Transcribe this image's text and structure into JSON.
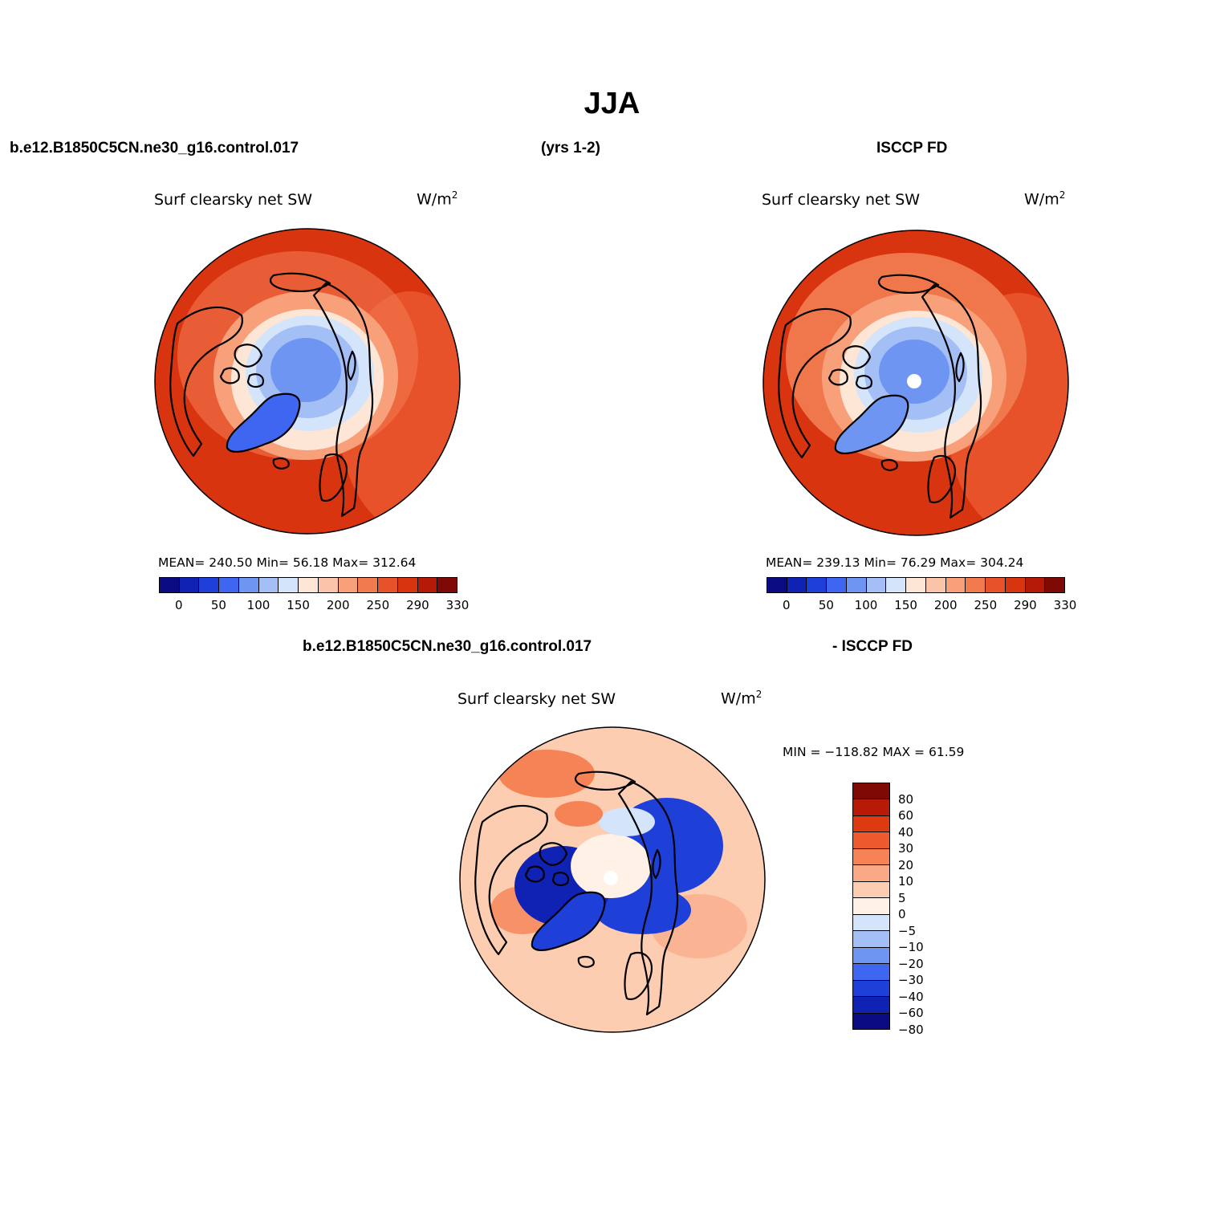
{
  "title": "JJA",
  "header": {
    "case": "b.e12.B1850C5CN.ne30_g16.control.017",
    "years": "(yrs 1-2)",
    "obs": "ISCCP FD"
  },
  "diff_header": {
    "case": "b.e12.B1850C5CN.ne30_g16.control.017",
    "obs": "- ISCCP FD"
  },
  "colors": {
    "abs_scale": [
      "#0a0a82",
      "#0f22b4",
      "#1f3fd9",
      "#3e66f0",
      "#6f95f3",
      "#a4bff6",
      "#d3e4fb",
      "#fde6d6",
      "#fbc3a8",
      "#f7a07a",
      "#f17a4f",
      "#e8522a",
      "#d93410",
      "#b51a08",
      "#7e0905"
    ],
    "diff_scale": [
      "#0a0a82",
      "#0f22b4",
      "#1f3fd9",
      "#3e66f0",
      "#6f95f3",
      "#a4bff6",
      "#d3e4fb",
      "#fff1e6",
      "#fdcdb2",
      "#f9a986",
      "#f58355",
      "#ee5a2d",
      "#dd3a0f",
      "#b71b08",
      "#7e0905"
    ]
  },
  "panels": [
    {
      "title": "Surf clearsky net SW",
      "units_base": "W/m",
      "units_exp": "2",
      "stats": "MEAN= 240.50    Min=    56.18    Max=  312.64",
      "ticks": [
        "0",
        "50",
        "100",
        "150",
        "200",
        "250",
        "290",
        "330"
      ],
      "polar_hole": false
    },
    {
      "title": "Surf clearsky net SW",
      "units_base": "W/m",
      "units_exp": "2",
      "stats": "MEAN= 239.13    Min=    76.29    Max=  304.24",
      "ticks": [
        "0",
        "50",
        "100",
        "150",
        "200",
        "250",
        "290",
        "330"
      ],
      "polar_hole": true
    }
  ],
  "diff_panel": {
    "title": "Surf clearsky net SW",
    "units_base": "W/m",
    "units_exp": "2",
    "stats": "MIN = −118.82  MAX =    61.59",
    "ticks": [
      "80",
      "60",
      "40",
      "30",
      "20",
      "10",
      "5",
      "0",
      "−5",
      "−10",
      "−20",
      "−30",
      "−40",
      "−60",
      "−80"
    ]
  }
}
